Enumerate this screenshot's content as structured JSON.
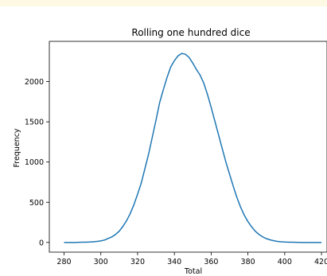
{
  "colors": {
    "banner": "#fdf9e3",
    "line": "#1f77b4"
  },
  "chart_data": {
    "type": "line",
    "title": "Rolling one hundred dice",
    "xlabel": "Total",
    "ylabel": "Frequency",
    "xlim": [
      272,
      423
    ],
    "ylim": [
      -120,
      2500
    ],
    "xticks": [
      280,
      300,
      320,
      340,
      360,
      380,
      400,
      420
    ],
    "yticks": [
      0,
      500,
      1000,
      1500,
      2000
    ],
    "grid": false,
    "series": [
      {
        "x": [
          280,
          282,
          284,
          286,
          288,
          290,
          292,
          294,
          296,
          298,
          300,
          302,
          304,
          306,
          308,
          310,
          312,
          314,
          316,
          318,
          320,
          322,
          324,
          326,
          328,
          330,
          332,
          334,
          336,
          338,
          340,
          342,
          344,
          346,
          348,
          350,
          352,
          354,
          356,
          358,
          360,
          362,
          364,
          366,
          368,
          370,
          372,
          374,
          376,
          378,
          380,
          382,
          384,
          386,
          388,
          390,
          392,
          394,
          396,
          398,
          400,
          402,
          404,
          406,
          408,
          410,
          412,
          414,
          416,
          418,
          420
        ],
        "y": [
          0,
          0,
          0,
          0,
          2,
          3,
          4,
          6,
          9,
          13,
          20,
          30,
          50,
          70,
          100,
          140,
          200,
          270,
          360,
          470,
          600,
          740,
          920,
          1100,
          1310,
          1520,
          1740,
          1900,
          2050,
          2180,
          2260,
          2320,
          2350,
          2340,
          2300,
          2230,
          2150,
          2080,
          1980,
          1840,
          1680,
          1510,
          1340,
          1170,
          1000,
          850,
          700,
          560,
          440,
          340,
          260,
          195,
          140,
          100,
          70,
          48,
          33,
          22,
          14,
          9,
          6,
          4,
          3,
          2,
          1,
          0,
          0,
          0,
          0,
          0,
          0
        ]
      }
    ]
  }
}
